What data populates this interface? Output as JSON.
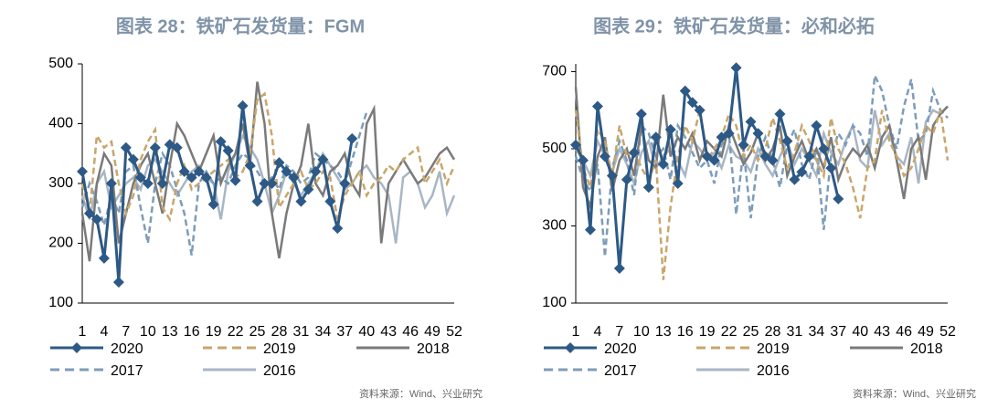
{
  "chart_data": [
    {
      "type": "line",
      "title": "图表 28：铁矿石发货量：FGM",
      "note": "资料来源：Wind、兴业研究",
      "categories": [
        "1",
        null,
        null,
        "4",
        null,
        null,
        "7",
        null,
        null,
        "10",
        null,
        null,
        "13",
        null,
        null,
        "16",
        null,
        null,
        "19",
        null,
        null,
        "22",
        null,
        null,
        "25",
        null,
        null,
        "28",
        null,
        null,
        "31",
        null,
        null,
        "34",
        null,
        null,
        "37",
        null,
        null,
        "40",
        null,
        null,
        "43",
        null,
        null,
        "46",
        null,
        null,
        "49",
        null,
        null,
        "52"
      ],
      "ylim": [
        100,
        500
      ],
      "yticks": [
        100,
        200,
        300,
        400,
        500
      ],
      "series": [
        {
          "name": "2020",
          "color": "#2d5986",
          "marker": "diamond",
          "dashed": false,
          "values": [
            320,
            250,
            240,
            175,
            300,
            135,
            360,
            340,
            310,
            300,
            360,
            300,
            365,
            360,
            320,
            310,
            320,
            310,
            265,
            370,
            355,
            305,
            430,
            330,
            270,
            300,
            300,
            335,
            320,
            310,
            270,
            290,
            320,
            340,
            270,
            225,
            300,
            375,
            null,
            null,
            null,
            null,
            null,
            null,
            null,
            null,
            null,
            null,
            null,
            null,
            null,
            null
          ]
        },
        {
          "name": "2019",
          "color": "#c8a66b",
          "dashed": true,
          "values": [
            300,
            250,
            380,
            360,
            370,
            300,
            250,
            280,
            340,
            370,
            390,
            260,
            240,
            300,
            330,
            290,
            300,
            310,
            320,
            330,
            340,
            310,
            320,
            350,
            440,
            450,
            380,
            260,
            280,
            300,
            320,
            290,
            300,
            320,
            310,
            240,
            280,
            300,
            320,
            280,
            300,
            310,
            330,
            320,
            340,
            350,
            360,
            300,
            320,
            340,
            300,
            330
          ]
        },
        {
          "name": "2018",
          "color": "#7a7a7a",
          "dashed": false,
          "values": [
            250,
            170,
            300,
            350,
            330,
            200,
            250,
            300,
            330,
            350,
            300,
            250,
            330,
            400,
            380,
            350,
            320,
            350,
            380,
            300,
            330,
            350,
            400,
            330,
            470,
            400,
            250,
            175,
            250,
            300,
            330,
            400,
            300,
            280,
            320,
            330,
            350,
            300,
            280,
            400,
            425,
            200,
            300,
            320,
            340,
            320,
            300,
            310,
            330,
            350,
            360,
            340
          ]
        },
        {
          "name": "2017",
          "color": "#7d9cb9",
          "dashed": true,
          "values": [
            260,
            300,
            270,
            230,
            280,
            250,
            320,
            330,
            260,
            200,
            300,
            350,
            330,
            290,
            250,
            180,
            300,
            320,
            300,
            310,
            300,
            330,
            350,
            340,
            320,
            300,
            310,
            290,
            330,
            320,
            300,
            310,
            350,
            340,
            330,
            320,
            300,
            340,
            380,
            420,
            null,
            null,
            null,
            null,
            null,
            null,
            null,
            null,
            null,
            null,
            null,
            null
          ]
        },
        {
          "name": "2016",
          "color": "#a8b6c4",
          "dashed": false,
          "values": [
            280,
            240,
            300,
            320,
            260,
            280,
            300,
            310,
            290,
            330,
            340,
            320,
            300,
            280,
            300,
            320,
            330,
            310,
            300,
            240,
            320,
            350,
            380,
            360,
            340,
            300,
            250,
            280,
            320,
            300,
            280,
            300,
            320,
            350,
            330,
            310,
            290,
            300,
            320,
            330,
            310,
            300,
            280,
            200,
            310,
            320,
            300,
            260,
            280,
            320,
            250,
            280
          ]
        }
      ]
    },
    {
      "type": "line",
      "title": "图表 29：铁矿石发货量：必和必拓",
      "note": "资料来源：Wind、兴业研究",
      "categories": [
        "1",
        null,
        null,
        "4",
        null,
        null,
        "7",
        null,
        null,
        "10",
        null,
        null,
        "13",
        null,
        null,
        "16",
        null,
        null,
        "19",
        null,
        null,
        "22",
        null,
        null,
        "25",
        null,
        null,
        "28",
        null,
        null,
        "31",
        null,
        null,
        "34",
        null,
        null,
        "37",
        null,
        null,
        "40",
        null,
        null,
        "43",
        null,
        null,
        "46",
        null,
        null,
        "49",
        null,
        null,
        "52"
      ],
      "ylim": [
        100,
        720
      ],
      "yticks": [
        100,
        300,
        500,
        700
      ],
      "series": [
        {
          "name": "2020",
          "color": "#2d5986",
          "marker": "diamond",
          "dashed": false,
          "values": [
            510,
            470,
            290,
            610,
            480,
            430,
            190,
            420,
            490,
            590,
            400,
            530,
            460,
            550,
            410,
            650,
            620,
            600,
            480,
            470,
            530,
            540,
            710,
            510,
            570,
            540,
            480,
            470,
            590,
            520,
            420,
            440,
            480,
            560,
            500,
            450,
            370,
            null,
            null,
            null,
            null,
            null,
            null,
            null,
            null,
            null,
            null,
            null,
            null,
            null,
            null,
            null
          ]
        },
        {
          "name": "2019",
          "color": "#c8a66b",
          "dashed": true,
          "values": [
            600,
            450,
            400,
            550,
            520,
            430,
            560,
            480,
            500,
            450,
            420,
            470,
            160,
            350,
            480,
            560,
            520,
            600,
            470,
            500,
            530,
            590,
            560,
            480,
            510,
            470,
            500,
            580,
            520,
            450,
            490,
            560,
            520,
            470,
            430,
            580,
            500,
            460,
            400,
            320,
            450,
            470,
            600,
            520,
            480,
            430,
            450,
            500,
            560,
            540,
            600,
            470
          ]
        },
        {
          "name": "2018",
          "color": "#7a7a7a",
          "dashed": false,
          "values": [
            660,
            400,
            350,
            480,
            530,
            390,
            470,
            500,
            430,
            560,
            470,
            450,
            640,
            480,
            530,
            500,
            540,
            470,
            520,
            500,
            480,
            560,
            510,
            460,
            490,
            540,
            470,
            500,
            560,
            430,
            480,
            520,
            470,
            500,
            450,
            530,
            420,
            470,
            500,
            480,
            510,
            450,
            530,
            560,
            470,
            370,
            500,
            530,
            420,
            560,
            590,
            610
          ]
        },
        {
          "name": "2017",
          "color": "#7d9cb9",
          "dashed": true,
          "values": [
            480,
            420,
            390,
            460,
            220,
            450,
            520,
            470,
            380,
            560,
            540,
            480,
            500,
            420,
            560,
            530,
            490,
            450,
            470,
            410,
            510,
            540,
            330,
            500,
            320,
            480,
            530,
            470,
            400,
            510,
            550,
            460,
            420,
            500,
            290,
            480,
            540,
            510,
            560,
            540,
            480,
            690,
            650,
            560,
            500,
            610,
            680,
            520,
            540,
            650,
            600,
            580
          ]
        },
        {
          "name": "2016",
          "color": "#a8b6c4",
          "dashed": false,
          "values": [
            500,
            470,
            430,
            520,
            480,
            440,
            500,
            460,
            410,
            490,
            520,
            450,
            480,
            500,
            470,
            430,
            520,
            500,
            470,
            490,
            450,
            510,
            480,
            470,
            440,
            500,
            460,
            430,
            480,
            520,
            460,
            500,
            470,
            430,
            540,
            490,
            460,
            520,
            560,
            470,
            450,
            600,
            510,
            540,
            480,
            460,
            530,
            410,
            570,
            600,
            590,
            610
          ]
        }
      ]
    }
  ]
}
